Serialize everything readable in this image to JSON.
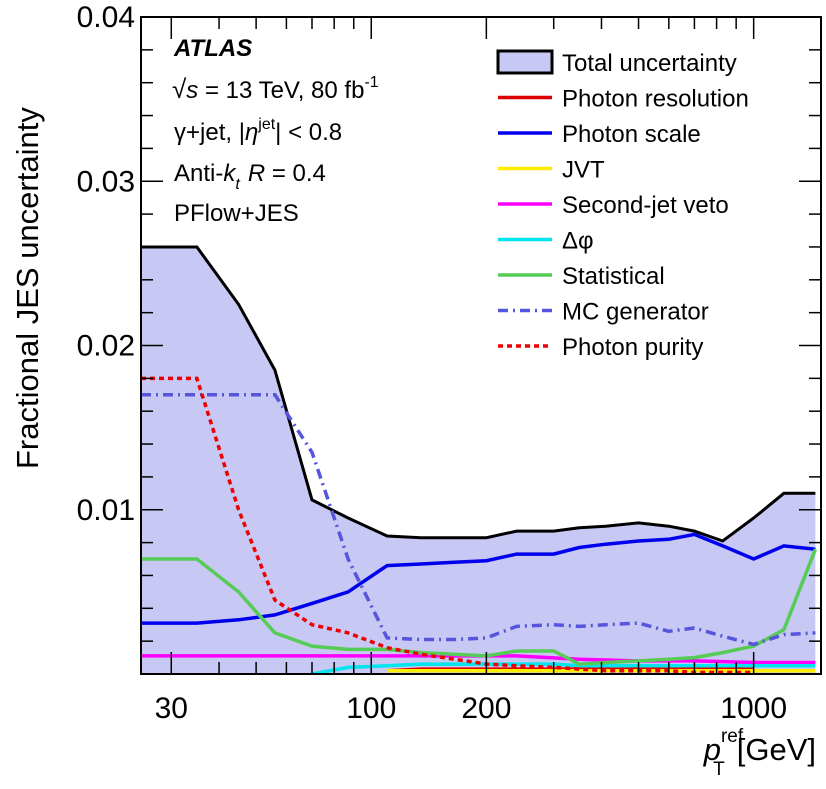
{
  "chart_data": {
    "type": "line",
    "annotation": {
      "experiment": "ATLAS",
      "energy_prefix": "s",
      "energy_text": " = 13 TeV, 80 fb",
      "lumi_sup": "-1",
      "selection_prefix": "γ+jet, |",
      "selection_var": "η",
      "selection_sup": "jet",
      "selection_suffix": "| < 0.8",
      "algo_prefix": "Anti-",
      "algo_var": "k",
      "algo_sub": "t",
      "algo_r": "R",
      "algo_suffix": " = 0.4",
      "reco": "PFlow+JES"
    },
    "ylabel": "Fractional JES uncertainty",
    "xlabel_var": "p",
    "xlabel_sup": "ref",
    "xlabel_sub": "T",
    "xlabel_unit": "[GeV]",
    "x_scale": "log",
    "xlim": [
      25,
      1500
    ],
    "ylim": [
      0,
      0.04
    ],
    "x_ticks": [
      {
        "value": 30,
        "label": "30"
      },
      {
        "value": 100,
        "label": "100"
      },
      {
        "value": 200,
        "label": "200"
      },
      {
        "value": 1000,
        "label": "1000"
      }
    ],
    "y_ticks": [
      {
        "value": 0.01,
        "label": "0.01"
      },
      {
        "value": 0.02,
        "label": "0.02"
      },
      {
        "value": 0.03,
        "label": "0.03"
      },
      {
        "value": 0.04,
        "label": "0.04"
      }
    ],
    "legend_position": "top-right",
    "series": [
      {
        "name": "Total uncertainty",
        "style": "band",
        "color": "#000000",
        "fill": "#c8c8f4",
        "x": [
          25,
          35,
          45,
          56,
          70,
          87,
          110,
          135,
          165,
          200,
          240,
          300,
          350,
          410,
          500,
          600,
          700,
          830,
          1000,
          1200,
          1450
        ],
        "y": [
          0.026,
          0.026,
          0.0225,
          0.0185,
          0.0106,
          0.0095,
          0.0084,
          0.0083,
          0.0083,
          0.0083,
          0.0087,
          0.0087,
          0.0089,
          0.009,
          0.0092,
          0.009,
          0.0087,
          0.0081,
          0.0095,
          0.011,
          0.011
        ]
      },
      {
        "name": "Photon resolution",
        "style": "solid",
        "color": "#dd0000",
        "x": [
          110,
          135,
          165,
          200,
          240,
          300,
          350,
          410,
          500,
          600,
          700,
          830,
          1000
        ],
        "y": [
          0.0002,
          0.0003,
          0.0003,
          0.0003,
          0.0003,
          0.0003,
          0.0003,
          0.0003,
          0.0003,
          0.0003,
          0.0003,
          0.0003,
          0.0003
        ]
      },
      {
        "name": "Photon scale",
        "style": "solid",
        "color": "#0000ee",
        "x": [
          25,
          35,
          45,
          56,
          70,
          87,
          110,
          135,
          165,
          200,
          240,
          300,
          350,
          410,
          500,
          600,
          700,
          830,
          1000,
          1200,
          1450
        ],
        "y": [
          0.0031,
          0.0031,
          0.0033,
          0.0036,
          0.0043,
          0.005,
          0.0066,
          0.0067,
          0.0068,
          0.0069,
          0.0073,
          0.0073,
          0.0077,
          0.0079,
          0.0081,
          0.0082,
          0.0085,
          0.0078,
          0.007,
          0.0078,
          0.0076
        ]
      },
      {
        "name": "JVT",
        "style": "solid",
        "color": "#ffee00",
        "x": [
          110,
          200,
          500,
          1000,
          1450
        ],
        "y": [
          0.0002,
          0.0002,
          0.0002,
          0.0002,
          0.0002
        ]
      },
      {
        "name": "Second-jet veto",
        "style": "solid",
        "color": "#ff00ff",
        "x": [
          25,
          45,
          70,
          110,
          165,
          240,
          350,
          500,
          700,
          1000,
          1450
        ],
        "y": [
          0.0011,
          0.0011,
          0.0011,
          0.0011,
          0.0011,
          0.0011,
          0.0009,
          0.0008,
          0.0008,
          0.0007,
          0.0007
        ]
      },
      {
        "name": "Δφ",
        "style": "solid",
        "color": "#00e5ee",
        "x": [
          70,
          87,
          110,
          135,
          165,
          200,
          240,
          300,
          350,
          410,
          500,
          600,
          700,
          830,
          1000,
          1200,
          1450
        ],
        "y": [
          0.0,
          0.0004,
          0.0005,
          0.0006,
          0.0006,
          0.0006,
          0.0006,
          0.0006,
          0.0005,
          0.0005,
          0.0005,
          0.0005,
          0.0005,
          0.0005,
          0.0005,
          0.0005,
          0.0005
        ]
      },
      {
        "name": "Statistical",
        "style": "solid",
        "color": "#55cc55",
        "x": [
          25,
          35,
          45,
          56,
          70,
          87,
          110,
          135,
          165,
          200,
          240,
          300,
          350,
          410,
          500,
          600,
          700,
          830,
          1000,
          1200,
          1450
        ],
        "y": [
          0.007,
          0.007,
          0.005,
          0.0025,
          0.0017,
          0.0015,
          0.0015,
          0.0013,
          0.0012,
          0.0011,
          0.0014,
          0.0014,
          0.0006,
          0.0007,
          0.0008,
          0.0009,
          0.001,
          0.0013,
          0.0017,
          0.0027,
          0.0076
        ]
      },
      {
        "name": "MC generator",
        "style": "dashdot",
        "color": "#5555dd",
        "x": [
          25,
          35,
          45,
          56,
          70,
          87,
          110,
          135,
          165,
          200,
          240,
          300,
          350,
          410,
          500,
          600,
          700,
          830,
          1000,
          1200,
          1450
        ],
        "y": [
          0.017,
          0.017,
          0.017,
          0.017,
          0.0135,
          0.007,
          0.0022,
          0.0021,
          0.0021,
          0.0022,
          0.0029,
          0.003,
          0.0029,
          0.003,
          0.0031,
          0.0026,
          0.0028,
          0.0023,
          0.0018,
          0.0024,
          0.0025
        ]
      },
      {
        "name": "Photon purity",
        "style": "dotted",
        "color": "#ee0000",
        "x": [
          25,
          35,
          45,
          56,
          70,
          87,
          110,
          135,
          165,
          200,
          240,
          300,
          350,
          410,
          500,
          600,
          700,
          830,
          1000
        ],
        "y": [
          0.018,
          0.018,
          0.01,
          0.0045,
          0.003,
          0.0025,
          0.0016,
          0.0012,
          0.0009,
          0.0006,
          0.0005,
          0.0004,
          0.0003,
          0.0002,
          0.0002,
          0.0002,
          0.0001,
          0.0001,
          0.0001
        ]
      }
    ]
  }
}
